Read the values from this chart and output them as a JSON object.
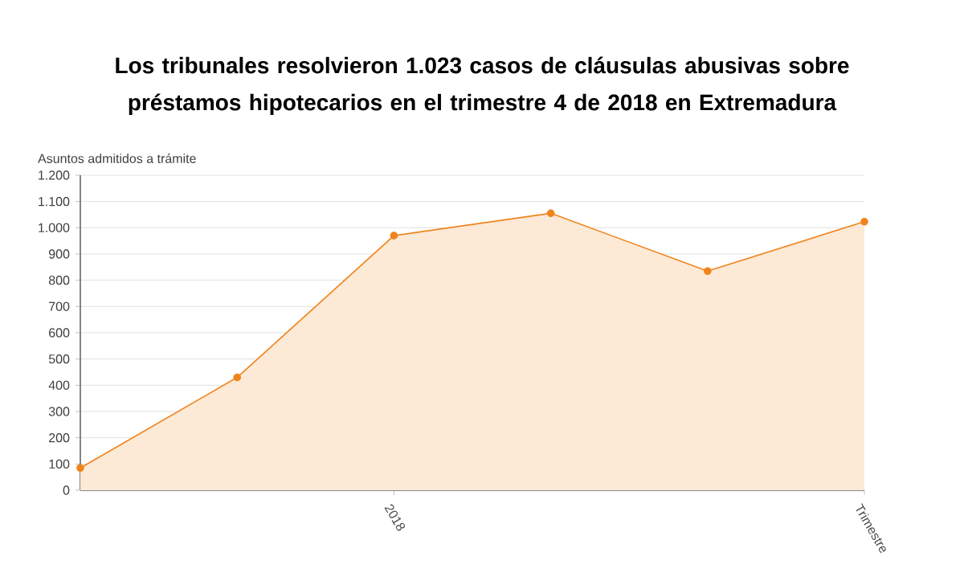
{
  "chart_data": {
    "type": "area",
    "title": "Los tribunales resolvieron 1.023 casos de cláusulas abusivas sobre préstamos hipotecarios en el trimestre 4 de 2018 en Extremadura",
    "ylabel": "Asuntos admitidos a trámite",
    "categories": [
      null,
      null,
      "2018",
      null,
      null,
      "Trimestre"
    ],
    "series": [
      {
        "color": "#f0841c",
        "values": [
          85,
          430,
          970,
          1055,
          835,
          1023
        ]
      }
    ],
    "ylim": [
      0,
      1200
    ],
    "yticks": [
      0,
      100,
      200,
      300,
      400,
      500,
      600,
      700,
      800,
      900,
      {
        "value": 1000,
        "label": "1.000"
      },
      {
        "value": 1100,
        "label": "1.100"
      },
      {
        "value": 1200,
        "label": "1.200"
      }
    ],
    "grid": "y",
    "marker": "circle",
    "line_style": "solid"
  }
}
